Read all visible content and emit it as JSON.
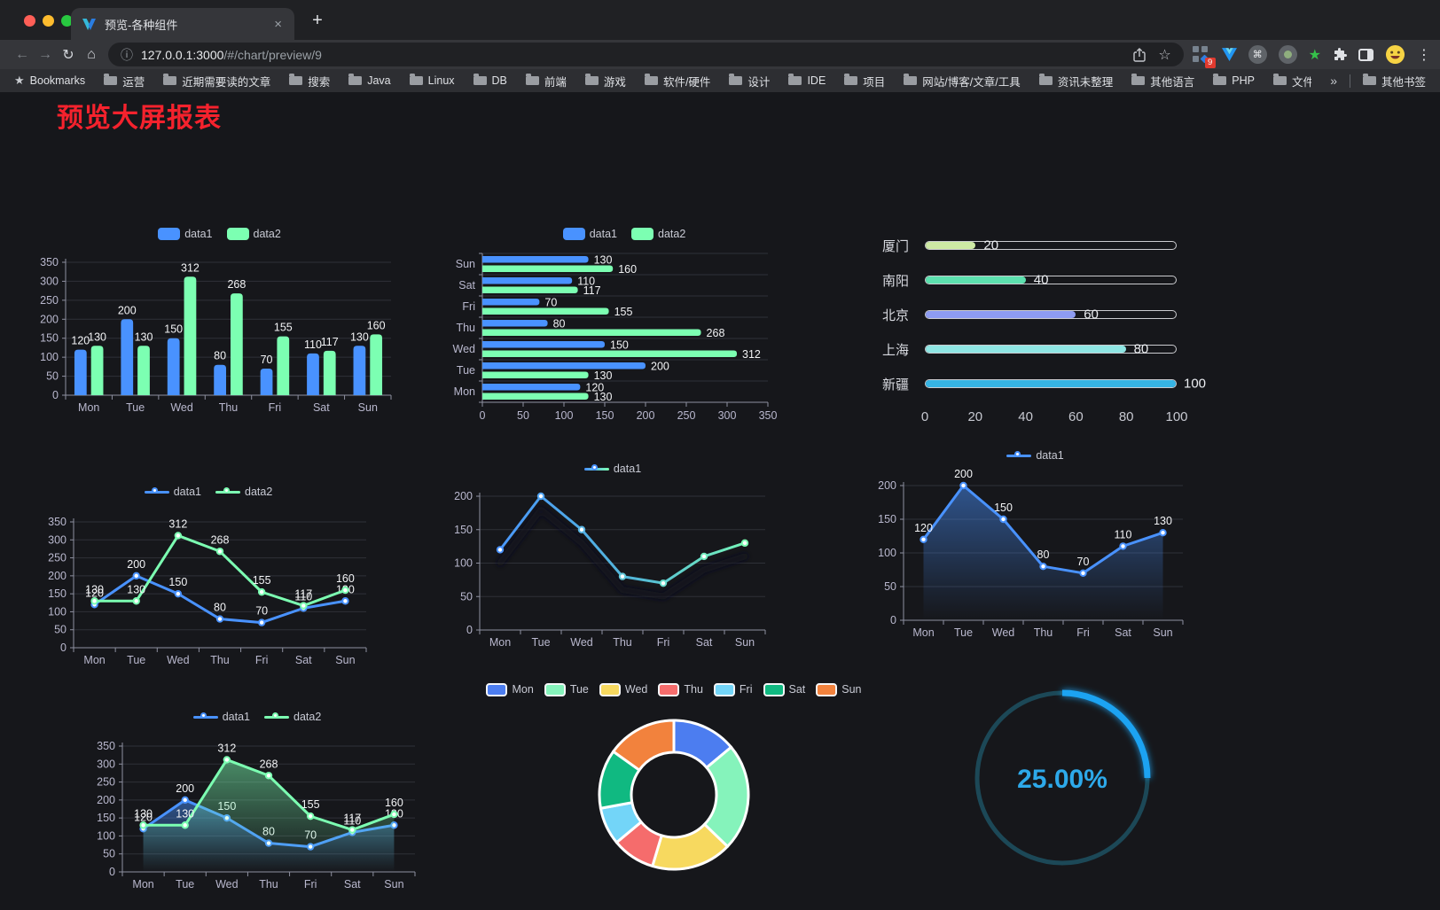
{
  "browser": {
    "tab": {
      "title": "预览-各种组件"
    },
    "address": {
      "host": "127.0.0.1:3000",
      "path": "/#/chart/preview/9"
    },
    "extension_badge": "9",
    "icons": {
      "close": "×",
      "new_tab": "+",
      "back": "←",
      "forward": "→",
      "reload": "↻",
      "home": "⌂",
      "info": "ⓘ",
      "star": "☆",
      "bookmark_star": "★",
      "green_star": "★",
      "command": "⌘",
      "menu": "⋮"
    }
  },
  "bookmarks": {
    "label": "Bookmarks",
    "folders": [
      "运营",
      "近期需要读的文章",
      "搜索",
      "Java",
      "Linux",
      "DB",
      "前端",
      "游戏",
      "软件/硬件",
      "设计",
      "IDE",
      "项目",
      "网站/博客/文章/工具",
      "资讯未整理",
      "其他语言",
      "PHP",
      "文件服务器"
    ],
    "overflow": "»",
    "other": "其他书签"
  },
  "page": {
    "title": "预览大屏报表"
  },
  "chart_data": [
    {
      "id": "grouped-bar",
      "type": "bar",
      "categories": [
        "Mon",
        "Tue",
        "Wed",
        "Thu",
        "Fri",
        "Sat",
        "Sun"
      ],
      "series": [
        {
          "name": "data1",
          "color": "#4992ff",
          "values": [
            120,
            200,
            150,
            80,
            70,
            110,
            130
          ]
        },
        {
          "name": "data2",
          "color": "#7cffb2",
          "values": [
            130,
            130,
            312,
            268,
            155,
            117,
            160
          ]
        }
      ],
      "ylim": [
        0,
        350
      ],
      "ytick_step": 50,
      "legend_position": "top",
      "value_labels": true,
      "grid": true
    },
    {
      "id": "horizontal-bar",
      "type": "bar",
      "orientation": "horizontal",
      "categories": [
        "Mon",
        "Tue",
        "Wed",
        "Thu",
        "Fri",
        "Sat",
        "Sun"
      ],
      "series": [
        {
          "name": "data1",
          "color": "#4992ff",
          "values": [
            120,
            200,
            150,
            80,
            70,
            110,
            130
          ]
        },
        {
          "name": "data2",
          "color": "#7cffb2",
          "values": [
            130,
            130,
            312,
            268,
            155,
            117,
            160
          ]
        }
      ],
      "xlim": [
        0,
        350
      ],
      "xtick_step": 50,
      "legend_position": "top",
      "value_labels": true
    },
    {
      "id": "capsule-progress",
      "type": "bar",
      "orientation": "horizontal",
      "style": "capsule",
      "items": [
        {
          "label": "厦门",
          "value": 20,
          "color": "#cde9a4"
        },
        {
          "label": "南阳",
          "value": 40,
          "color": "#5ce0ae"
        },
        {
          "label": "北京",
          "value": 60,
          "color": "#8e9cf2"
        },
        {
          "label": "上海",
          "value": 80,
          "color": "#8fe6e4"
        },
        {
          "label": "新疆",
          "value": 100,
          "color": "#36b4e4"
        }
      ],
      "xlim": [
        0,
        100
      ],
      "xticks": [
        0,
        20,
        40,
        60,
        80,
        100
      ]
    },
    {
      "id": "dual-line",
      "type": "line",
      "categories": [
        "Mon",
        "Tue",
        "Wed",
        "Thu",
        "Fri",
        "Sat",
        "Sun"
      ],
      "series": [
        {
          "name": "data1",
          "color": "#4992ff",
          "values": [
            120,
            200,
            150,
            80,
            70,
            110,
            130
          ]
        },
        {
          "name": "data2",
          "color": "#7cffb2",
          "values": [
            130,
            130,
            312,
            268,
            155,
            117,
            160
          ]
        }
      ],
      "ylim": [
        0,
        350
      ],
      "ytick_step": 50,
      "legend_position": "top",
      "value_labels": true
    },
    {
      "id": "gradient-line-shadow",
      "type": "line",
      "categories": [
        "Mon",
        "Tue",
        "Wed",
        "Thu",
        "Fri",
        "Sat",
        "Sun"
      ],
      "series": [
        {
          "name": "data1",
          "color_gradient": [
            "#4992ff",
            "#7cffb2"
          ],
          "values": [
            120,
            200,
            150,
            80,
            70,
            110,
            130
          ]
        }
      ],
      "ylim": [
        0,
        200
      ],
      "ytick_step": 50,
      "legend_position": "top",
      "value_labels": false,
      "shadow": true
    },
    {
      "id": "single-area",
      "type": "area",
      "categories": [
        "Mon",
        "Tue",
        "Wed",
        "Thu",
        "Fri",
        "Sat",
        "Sun"
      ],
      "series": [
        {
          "name": "data1",
          "color": "#4992ff",
          "values": [
            120,
            200,
            150,
            80,
            70,
            110,
            130
          ]
        }
      ],
      "ylim": [
        0,
        200
      ],
      "ytick_step": 50,
      "legend_position": "top",
      "value_labels": true
    },
    {
      "id": "dual-area",
      "type": "area",
      "categories": [
        "Mon",
        "Tue",
        "Wed",
        "Thu",
        "Fri",
        "Sat",
        "Sun"
      ],
      "series": [
        {
          "name": "data1",
          "color": "#4992ff",
          "values": [
            120,
            200,
            150,
            80,
            70,
            110,
            130
          ]
        },
        {
          "name": "data2",
          "color": "#7cffb2",
          "values": [
            130,
            130,
            312,
            268,
            155,
            117,
            160
          ]
        }
      ],
      "ylim": [
        0,
        350
      ],
      "ytick_step": 50,
      "legend_position": "top",
      "value_labels": true
    },
    {
      "id": "donut",
      "type": "pie",
      "categories": [
        "Mon",
        "Tue",
        "Wed",
        "Thu",
        "Fri",
        "Sat",
        "Sun"
      ],
      "values": [
        120,
        200,
        150,
        80,
        70,
        110,
        130
      ],
      "colors": [
        "#4c7df0",
        "#85f3bb",
        "#f7d95f",
        "#f56c6c",
        "#73d5f8",
        "#10b981",
        "#f2823d"
      ],
      "inner_radius_ratio": 0.57,
      "legend_position": "top"
    },
    {
      "id": "ring-gauge",
      "type": "gauge",
      "value": 25,
      "label": "25.00%",
      "arc_color": "#1aa3f2",
      "track_color": "#1c4857",
      "text_color": "#2da9ea"
    }
  ]
}
